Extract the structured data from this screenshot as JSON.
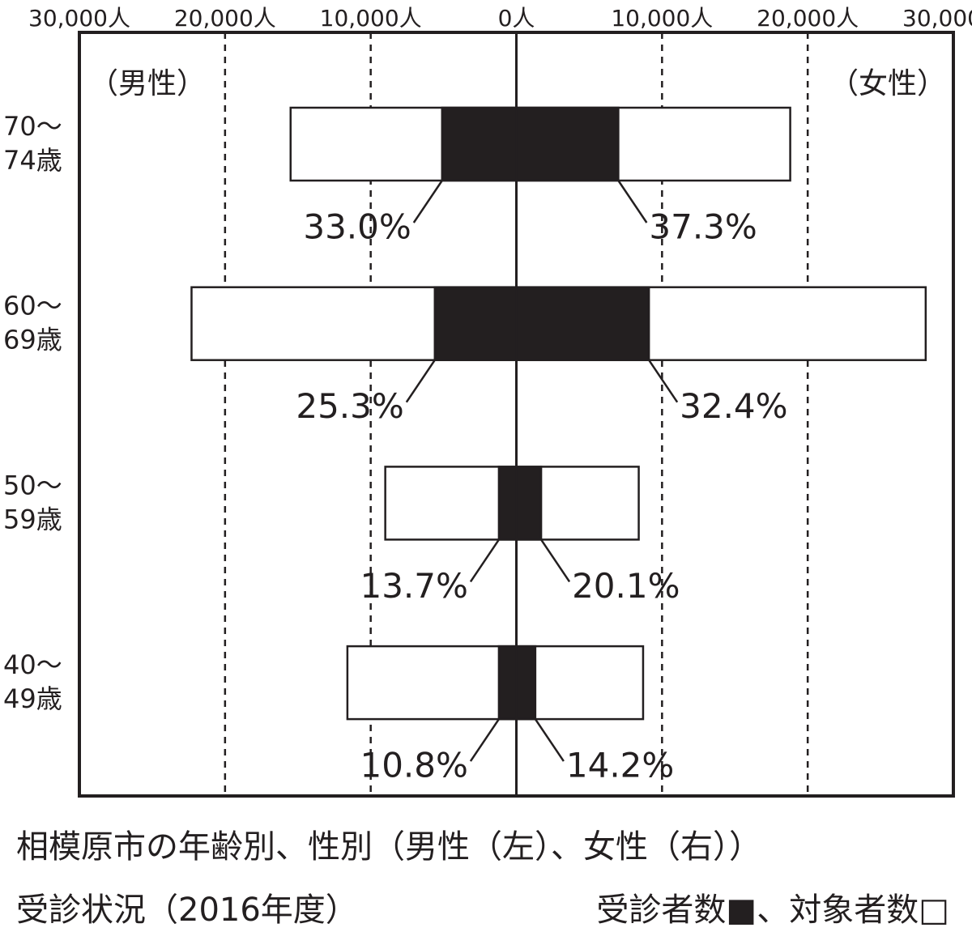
{
  "chart_data": {
    "type": "pyramid",
    "title": "相模原市の年齢別、性別（男性（左）、女性（右））",
    "subtitle": "受診状況（2016年度）",
    "legend_text": "受診者数■、対象者数□",
    "left_label": "（男性）",
    "right_label": "（女性）",
    "categories": [
      [
        "70～",
        "74歳"
      ],
      [
        "60～",
        "69歳"
      ],
      [
        "50～",
        "59歳"
      ],
      [
        "40～",
        "49歳"
      ]
    ],
    "xlim": [
      -30000,
      30000
    ],
    "xticks": [
      {
        "value": -30000,
        "label": "30,000人"
      },
      {
        "value": -20000,
        "label": "20,000人"
      },
      {
        "value": -10000,
        "label": "10,000人"
      },
      {
        "value": 0,
        "label": "0人"
      },
      {
        "value": 10000,
        "label": "10,000人"
      },
      {
        "value": 20000,
        "label": "20,000人"
      },
      {
        "value": 30000,
        "label": "30,000人"
      }
    ],
    "grid": true,
    "series": [
      {
        "color": "#ffffff",
        "male": [
          15500,
          22300,
          9000,
          11600
        ],
        "female": [
          18800,
          28100,
          8400,
          8700
        ]
      },
      {
        "color": "#231f20",
        "male": [
          5100,
          5600,
          1200,
          1200
        ],
        "female": [
          7000,
          9100,
          1700,
          1300
        ]
      }
    ],
    "rates": {
      "male": {
        "values": [
          33.0,
          25.3,
          13.7,
          10.8
        ],
        "value_labels": [
          "33.0%",
          "25.3%",
          "13.7%",
          "10.8%"
        ]
      },
      "female": {
        "values": [
          37.3,
          32.4,
          20.1,
          14.2
        ],
        "value_labels": [
          "37.3%",
          "32.4%",
          "20.1%",
          "14.2%"
        ]
      }
    }
  }
}
